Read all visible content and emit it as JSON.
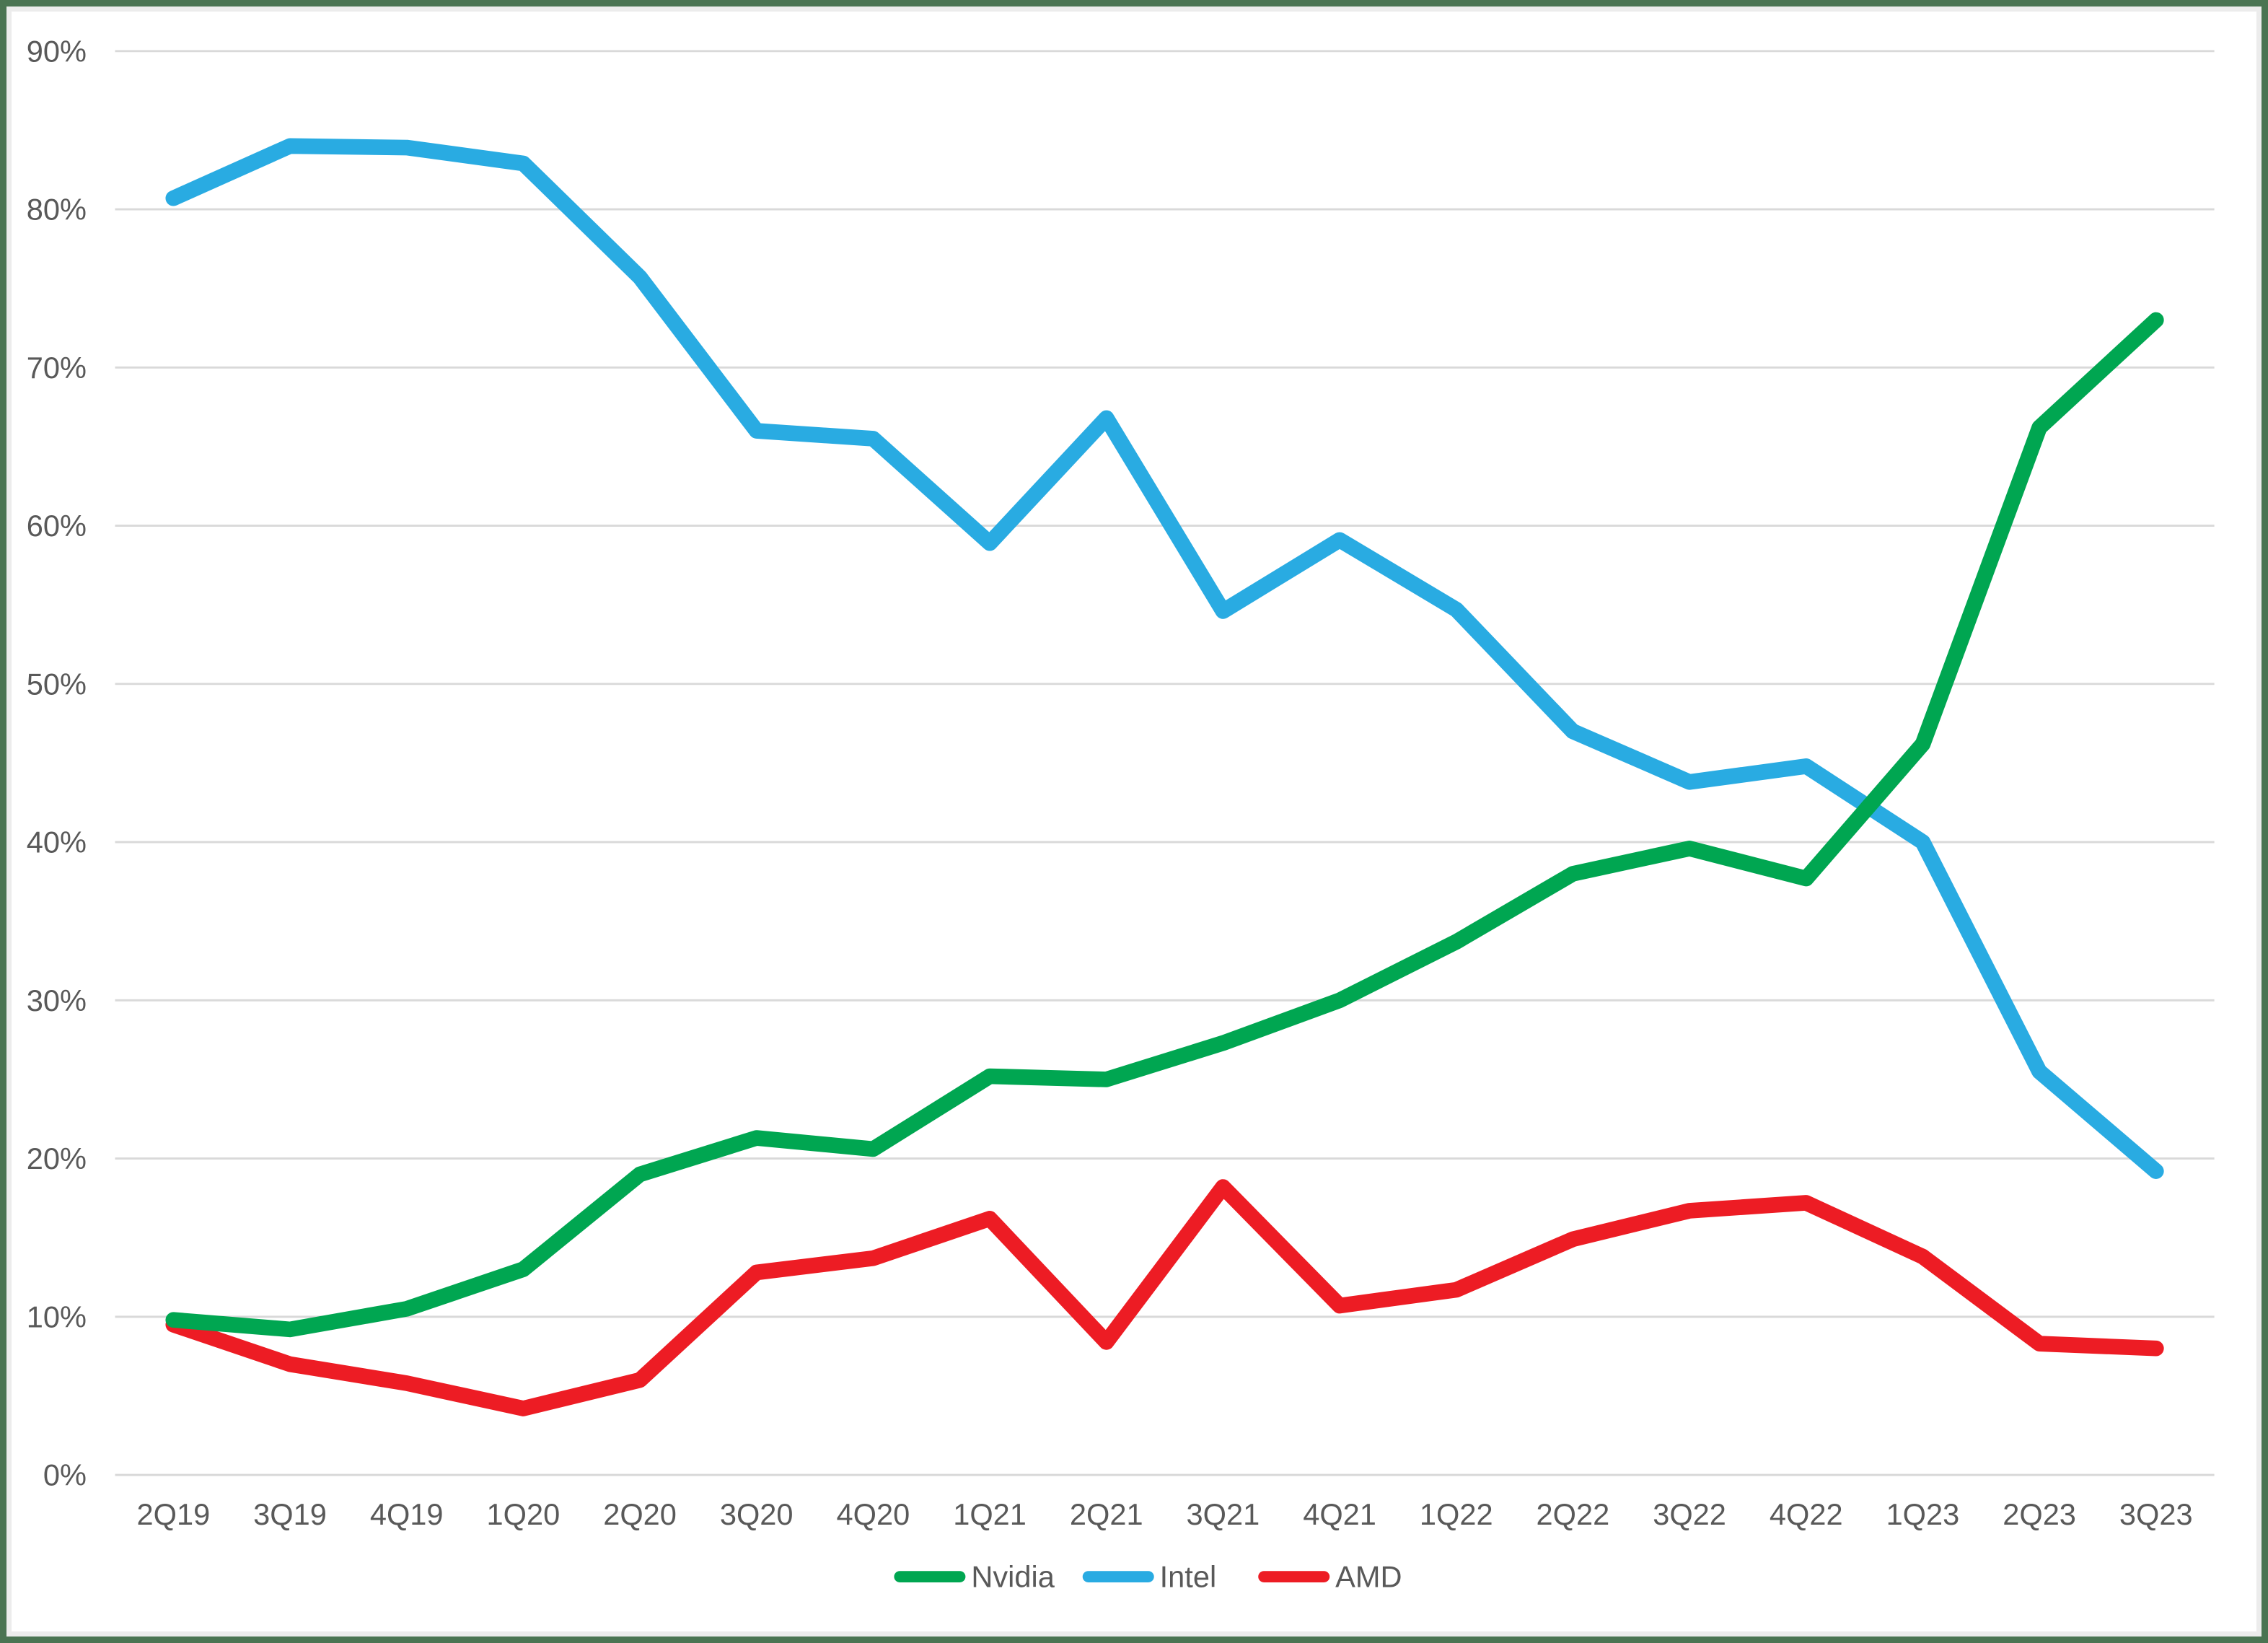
{
  "page": {
    "background_color": "#FFFFFF",
    "border_color": "#4A7452",
    "inner_border_color": "#ECECEC",
    "axis_text_color": "#595959",
    "gridline_color": "#D9D9D9"
  },
  "chart_data": {
    "type": "line",
    "title": "",
    "xlabel": "",
    "ylabel": "",
    "categories": [
      "2Q19",
      "3Q19",
      "4Q19",
      "1Q20",
      "2Q20",
      "3Q20",
      "4Q20",
      "1Q21",
      "2Q21",
      "3Q21",
      "4Q21",
      "1Q22",
      "2Q22",
      "3Q22",
      "4Q22",
      "1Q23",
      "2Q23",
      "3Q23"
    ],
    "series": [
      {
        "name": "Nvidia",
        "color": "#00A651",
        "values": [
          9.8,
          9.2,
          10.5,
          13.0,
          19.0,
          21.3,
          20.6,
          25.2,
          25.0,
          27.3,
          30.0,
          33.7,
          38.0,
          39.6,
          37.7,
          46.2,
          66.2,
          73.0
        ]
      },
      {
        "name": "Intel",
        "color": "#29ABE2",
        "values": [
          80.7,
          84.0,
          83.9,
          82.9,
          75.7,
          66.0,
          65.5,
          58.9,
          66.8,
          54.6,
          59.1,
          54.7,
          47.0,
          43.8,
          44.8,
          40.0,
          25.5,
          19.2
        ]
      },
      {
        "name": "AMD",
        "color": "#ED1C24",
        "values": [
          9.5,
          7.0,
          5.8,
          4.2,
          6.0,
          12.8,
          13.7,
          16.2,
          8.4,
          18.2,
          10.7,
          11.7,
          14.9,
          16.7,
          17.2,
          13.8,
          8.3,
          8.0
        ]
      }
    ],
    "ylim": [
      0,
      90
    ],
    "y_ticks": [
      0,
      10,
      20,
      30,
      40,
      50,
      60,
      70,
      80,
      90
    ],
    "y_tick_suffix": "%",
    "grid": true,
    "legend_position": "bottom"
  }
}
